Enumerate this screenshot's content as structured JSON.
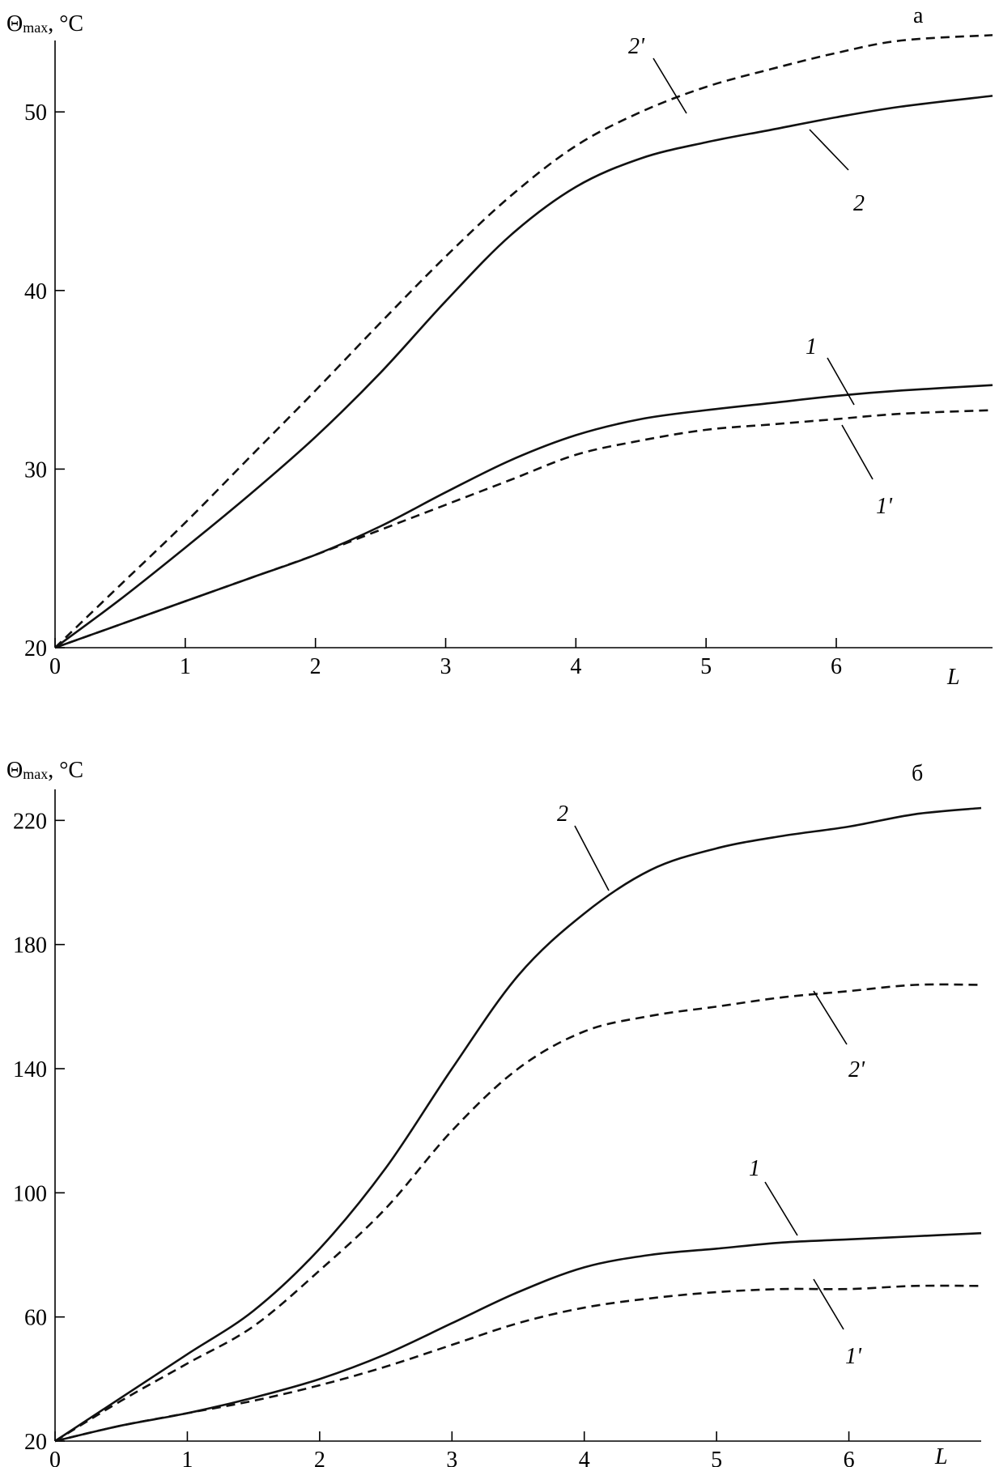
{
  "chart_data": [
    {
      "type": "line",
      "panel_label": "а",
      "ylabel_symbol": "Θ",
      "ylabel_sub": "max",
      "ylabel_unit": ", °C",
      "xlabel": "L",
      "xlim": [
        0,
        7.2
      ],
      "ylim": [
        20,
        54
      ],
      "xticks": [
        0,
        1,
        2,
        3,
        4,
        5,
        6
      ],
      "yticks": [
        20,
        30,
        40,
        50
      ],
      "grid": false,
      "legend": "none",
      "series": [
        {
          "name": "1",
          "style": "solid",
          "x": [
            0,
            0.5,
            1,
            1.5,
            2,
            2.5,
            3,
            3.5,
            4,
            4.5,
            5,
            5.5,
            6,
            6.5,
            7.2
          ],
          "y": [
            20,
            21.3,
            22.6,
            23.9,
            25.2,
            26.8,
            28.7,
            30.5,
            31.9,
            32.8,
            33.3,
            33.7,
            34.1,
            34.4,
            34.7
          ]
        },
        {
          "name": "1'",
          "style": "dashed",
          "x": [
            0,
            0.5,
            1,
            1.5,
            2,
            2.5,
            3,
            3.5,
            4,
            4.5,
            5,
            5.5,
            6,
            6.5,
            7.2
          ],
          "y": [
            20,
            21.3,
            22.6,
            23.9,
            25.2,
            26.6,
            28.0,
            29.4,
            30.8,
            31.6,
            32.2,
            32.5,
            32.8,
            33.1,
            33.3
          ]
        },
        {
          "name": "2",
          "style": "solid",
          "x": [
            0,
            0.5,
            1,
            1.5,
            2,
            2.5,
            3,
            3.5,
            4,
            4.5,
            5,
            5.5,
            6,
            6.5,
            7.2
          ],
          "y": [
            20,
            22.7,
            25.6,
            28.6,
            31.8,
            35.4,
            39.4,
            43.1,
            45.8,
            47.4,
            48.3,
            49.0,
            49.7,
            50.3,
            50.9
          ]
        },
        {
          "name": "2'",
          "style": "dashed",
          "x": [
            0,
            0.5,
            1,
            1.5,
            2,
            2.5,
            3,
            3.5,
            4,
            4.5,
            5,
            5.5,
            6,
            6.5,
            7.2
          ],
          "y": [
            20,
            23.5,
            27.0,
            30.7,
            34.4,
            38.2,
            41.9,
            45.3,
            48.1,
            50.0,
            51.4,
            52.4,
            53.3,
            54.0,
            54.3
          ]
        }
      ],
      "annotations": [
        "2'",
        "2",
        "1",
        "1'"
      ]
    },
    {
      "type": "line",
      "panel_label": "б",
      "ylabel_symbol": "Θ",
      "ylabel_sub": "max",
      "ylabel_unit": ", °C",
      "xlabel": "L",
      "xlim": [
        0,
        7.0
      ],
      "ylim": [
        20,
        230
      ],
      "xticks": [
        0,
        1,
        2,
        3,
        4,
        5,
        6
      ],
      "yticks": [
        20,
        60,
        100,
        140,
        180,
        220
      ],
      "grid": false,
      "legend": "none",
      "series": [
        {
          "name": "1",
          "style": "solid",
          "x": [
            0,
            0.5,
            1,
            1.5,
            2,
            2.5,
            3,
            3.5,
            4,
            4.5,
            5,
            5.5,
            6,
            6.5,
            7.0
          ],
          "y": [
            20,
            25,
            29,
            34,
            40,
            48,
            58,
            68,
            76,
            80,
            82,
            84,
            85,
            86,
            87
          ]
        },
        {
          "name": "1'",
          "style": "dashed",
          "x": [
            0,
            0.5,
            1,
            1.5,
            2,
            2.5,
            3,
            3.5,
            4,
            4.5,
            5,
            5.5,
            6,
            6.5,
            7.0
          ],
          "y": [
            20,
            25,
            29,
            33,
            38,
            44,
            51,
            58,
            63,
            66,
            68,
            69,
            69,
            70,
            70
          ]
        },
        {
          "name": "2",
          "style": "solid",
          "x": [
            0,
            0.5,
            1,
            1.5,
            2,
            2.5,
            3,
            3.5,
            4,
            4.5,
            5,
            5.5,
            6,
            6.5,
            7.0
          ],
          "y": [
            20,
            34,
            48,
            62,
            82,
            108,
            140,
            170,
            190,
            204,
            211,
            215,
            218,
            222,
            224
          ]
        },
        {
          "name": "2'",
          "style": "dashed",
          "x": [
            0,
            0.5,
            1,
            1.5,
            2,
            2.5,
            3,
            3.5,
            4,
            4.5,
            5,
            5.5,
            6,
            6.5,
            7.0
          ],
          "y": [
            20,
            33,
            45,
            57,
            75,
            95,
            120,
            140,
            152,
            157,
            160,
            163,
            165,
            167,
            167
          ]
        }
      ],
      "annotations": [
        "2",
        "2'",
        "1",
        "1'"
      ]
    }
  ]
}
